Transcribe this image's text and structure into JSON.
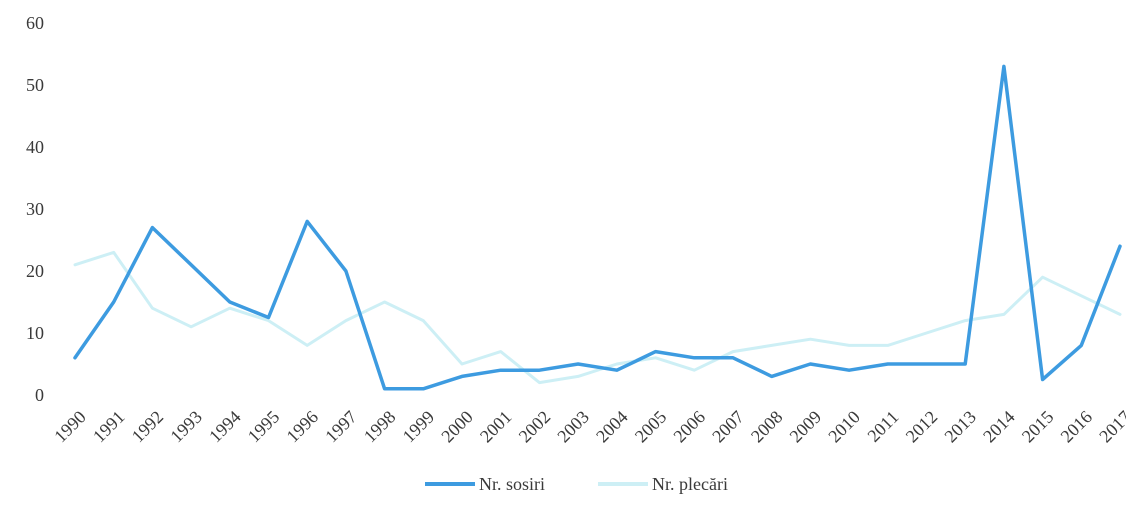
{
  "chart_data": {
    "type": "line",
    "x": [
      "1990",
      "1991",
      "1992",
      "1993",
      "1994",
      "1995",
      "1996",
      "1997",
      "1998",
      "1999",
      "2000",
      "2001",
      "2002",
      "2003",
      "2004",
      "2005",
      "2006",
      "2007",
      "2008",
      "2009",
      "2010",
      "2011",
      "2012",
      "2013",
      "2014",
      "2015",
      "2016",
      "2017"
    ],
    "series": [
      {
        "name": "Nr. sosiri",
        "color": "#3d9be0",
        "values": [
          6,
          15,
          27,
          21,
          15,
          12.5,
          28,
          20,
          1,
          1,
          3,
          4,
          4,
          5,
          4,
          7,
          6,
          6,
          3,
          5,
          4,
          5,
          5,
          5,
          53,
          2.5,
          8,
          24
        ]
      },
      {
        "name": "Nr. plecări",
        "color": "#cdeff5",
        "values": [
          21,
          23,
          14,
          11,
          14,
          12,
          8,
          12,
          15,
          12,
          5,
          7,
          2,
          3,
          5,
          6,
          4,
          7,
          8,
          9,
          8,
          8,
          10,
          12,
          13,
          19,
          16,
          13
        ]
      }
    ],
    "yticks": [
      "0",
      "10",
      "20",
      "30",
      "40",
      "50",
      "60"
    ],
    "ylim": [
      0,
      60
    ],
    "grid": false,
    "legend": "bottom-center"
  }
}
